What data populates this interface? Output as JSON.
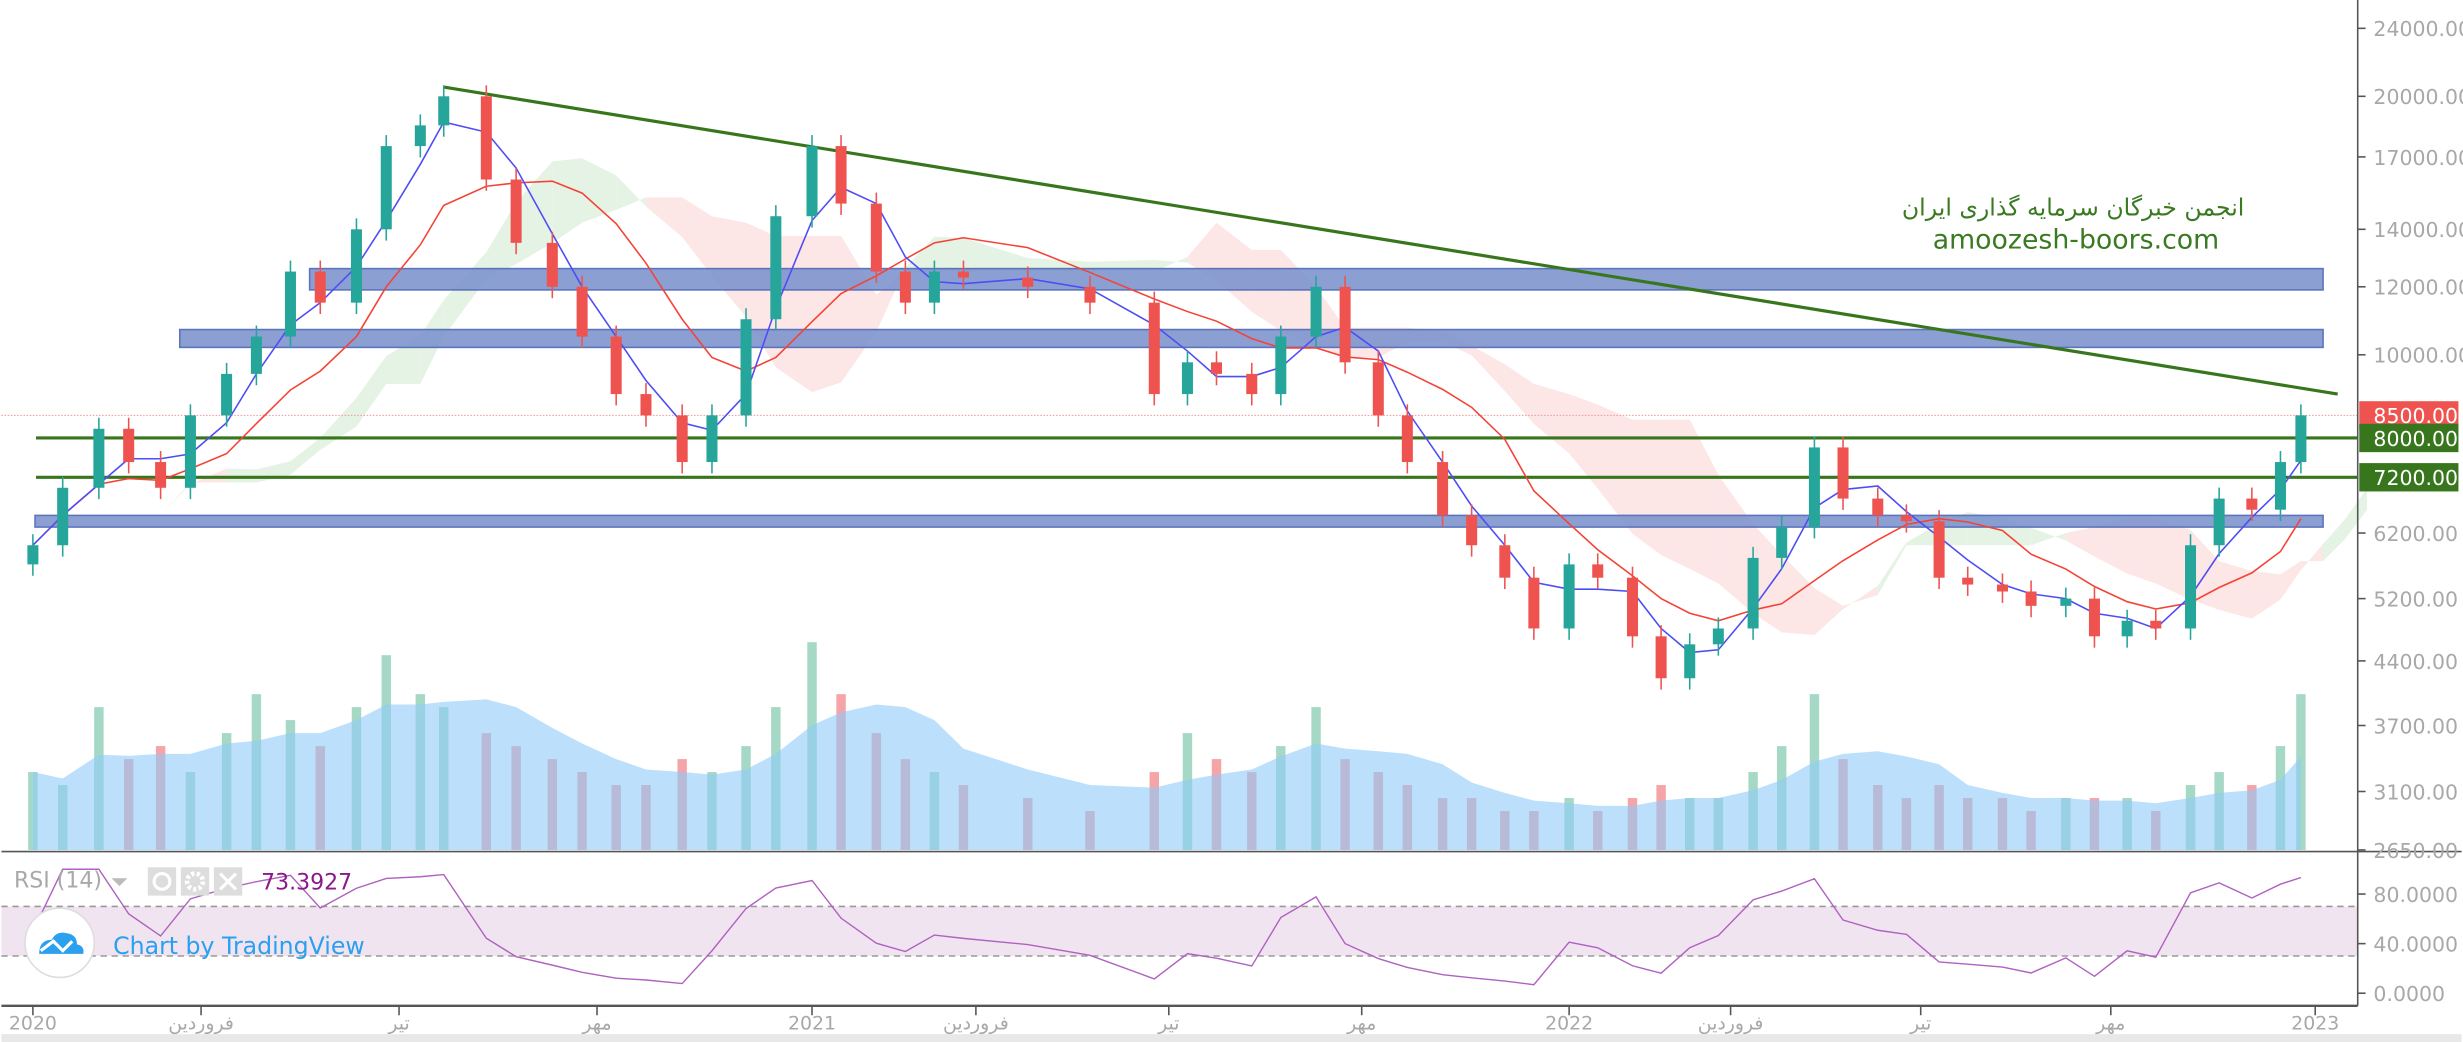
{
  "chart_data": {
    "type": "candlestick",
    "y_scale": "log",
    "ylim": [
      2650,
      24000
    ],
    "grid": false,
    "price_ticks": [
      "24000.00",
      "20000.00",
      "17000.00",
      "14000.00",
      "12000.00",
      "10000.00",
      "6200.00",
      "5200.00",
      "4400.00",
      "3700.00",
      "3100.00",
      "2650.00"
    ],
    "price_tick_values": [
      24000,
      20000,
      17000,
      14000,
      12000,
      10000,
      6200,
      5200,
      4400,
      3700,
      3100,
      2650
    ],
    "badges": [
      {
        "label": "8500.00",
        "value": 8500,
        "color": "#ef5350"
      },
      {
        "label": "8000.00",
        "value": 8000,
        "color": "#38761d"
      },
      {
        "label": "7200.00",
        "value": 7200,
        "color": "#38761d"
      }
    ],
    "time_ticks": [
      {
        "label": "2020",
        "date": "2020-01-01"
      },
      {
        "label": "فروردین",
        "date": "2020-03-20"
      },
      {
        "label": "تیر",
        "date": "2020-06-21"
      },
      {
        "label": "مهر",
        "date": "2020-09-22"
      },
      {
        "label": "2021",
        "date": "2021-01-01"
      },
      {
        "label": "فروردین",
        "date": "2021-03-21"
      },
      {
        "label": "تیر",
        "date": "2021-06-22"
      },
      {
        "label": "مهر",
        "date": "2021-09-23"
      },
      {
        "label": "2022",
        "date": "2022-01-01"
      },
      {
        "label": "فروردین",
        "date": "2022-03-21"
      },
      {
        "label": "تیر",
        "date": "2022-06-22"
      },
      {
        "label": "مهر",
        "date": "2022-09-23"
      },
      {
        "label": "2023",
        "date": "2023-01-01"
      }
    ],
    "dates": [
      "2020-01-01",
      "2020-01-15",
      "2020-02-01",
      "2020-02-15",
      "2020-03-01",
      "2020-03-15",
      "2020-04-01",
      "2020-04-15",
      "2020-05-01",
      "2020-05-15",
      "2020-06-01",
      "2020-06-15",
      "2020-07-01",
      "2020-07-12",
      "2020-08-01",
      "2020-08-15",
      "2020-09-01",
      "2020-09-15",
      "2020-10-01",
      "2020-10-15",
      "2020-11-01",
      "2020-11-15",
      "2020-12-01",
      "2020-12-15",
      "2021-01-01",
      "2021-01-15",
      "2021-02-01",
      "2021-02-15",
      "2021-03-01",
      "2021-03-15",
      "2021-04-15",
      "2021-05-15",
      "2021-06-15",
      "2021-07-01",
      "2021-07-15",
      "2021-08-01",
      "2021-08-15",
      "2021-09-01",
      "2021-09-15",
      "2021-10-01",
      "2021-10-15",
      "2021-11-01",
      "2021-11-15",
      "2021-12-01",
      "2021-12-15",
      "2022-01-01",
      "2022-01-15",
      "2022-02-01",
      "2022-02-15",
      "2022-03-01",
      "2022-03-15",
      "2022-04-01",
      "2022-04-15",
      "2022-05-01",
      "2022-05-15",
      "2022-06-01",
      "2022-06-15",
      "2022-07-01",
      "2022-07-15",
      "2022-08-01",
      "2022-08-15",
      "2022-09-01",
      "2022-09-15",
      "2022-10-01",
      "2022-10-15",
      "2022-11-01",
      "2022-11-15",
      "2022-12-01",
      "2022-12-15",
      "2022-12-25"
    ],
    "close": [
      6000,
      7000,
      8200,
      7500,
      7000,
      8500,
      9500,
      10500,
      12500,
      11500,
      14000,
      17500,
      18500,
      20000,
      16000,
      13500,
      12000,
      10500,
      9000,
      8500,
      7500,
      8500,
      11000,
      14500,
      17500,
      15000,
      12500,
      11500,
      12500,
      12300,
      12000,
      11500,
      9000,
      9800,
      9500,
      9000,
      10500,
      12000,
      9800,
      8500,
      7500,
      6500,
      6000,
      5500,
      4800,
      5700,
      5500,
      4700,
      4200,
      4600,
      4800,
      5800,
      6300,
      7800,
      6800,
      6500,
      6400,
      5500,
      5400,
      5300,
      5100,
      5200,
      4700,
      4900,
      4800,
      6000,
      6800,
      6600,
      7500,
      8500
    ],
    "volume_relative": [
      30,
      25,
      55,
      35,
      40,
      30,
      45,
      60,
      50,
      40,
      55,
      75,
      60,
      55,
      45,
      40,
      35,
      30,
      25,
      25,
      35,
      30,
      40,
      55,
      80,
      60,
      45,
      35,
      30,
      25,
      20,
      15,
      30,
      45,
      35,
      30,
      40,
      55,
      35,
      30,
      25,
      20,
      20,
      15,
      15,
      20,
      15,
      20,
      25,
      20,
      20,
      30,
      40,
      60,
      35,
      25,
      20,
      25,
      20,
      20,
      15,
      20,
      20,
      20,
      15,
      25,
      30,
      25,
      40,
      60
    ],
    "zones": [
      {
        "top": 12600,
        "bottom": 11900,
        "from": "2020-05-10",
        "color": "#7f95cf"
      },
      {
        "top": 10700,
        "bottom": 10200,
        "from": "2020-03-10",
        "color": "#7f95cf"
      },
      {
        "top": 6500,
        "bottom": 6300,
        "from": "2020-01-02",
        "color": "#7f95cf"
      }
    ],
    "support_lines": [
      8000,
      7200
    ],
    "last_price_line": 8500,
    "trendline": {
      "from": {
        "date": "2020-07-12",
        "price": 20500
      },
      "to": {
        "date": "2023-01-12",
        "price": 9000
      },
      "color": "#38761d"
    },
    "colors": {
      "up": "#26a69a",
      "down": "#ef5350",
      "ma_fast": "#4d4df5",
      "ma_slow": "#f44336",
      "volume_ma": "#90caf9",
      "line_green": "#38761d",
      "rsi": "#9c27b0"
    }
  },
  "watermark": {
    "line1": "انجمن خبرگان سرمایه گذاری ایران",
    "line2": "amoozesh-boors.com"
  },
  "rsi": {
    "title": "RSI (14)",
    "value": "73.3927",
    "ticks": [
      "80.0000",
      "40.0000",
      "0.0000"
    ],
    "tick_values": [
      80,
      40,
      0
    ]
  },
  "branding": {
    "label": "Chart by TradingView"
  }
}
